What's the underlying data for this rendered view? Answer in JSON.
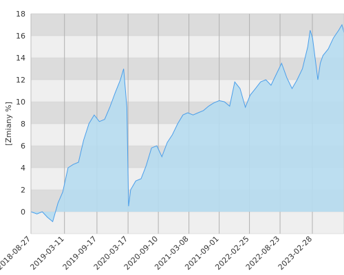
{
  "chart_data": {
    "type": "area",
    "ylabel": "[Zmiany %]",
    "x": [
      "2018-08-27",
      "2018-10-01",
      "2018-11-01",
      "2018-12-01",
      "2019-01-01",
      "2019-02-01",
      "2019-03-01",
      "2019-04-01",
      "2019-05-01",
      "2019-06-01",
      "2019-07-01",
      "2019-08-01",
      "2019-09-01",
      "2019-10-01",
      "2019-11-01",
      "2019-12-01",
      "2020-01-01",
      "2020-02-01",
      "2020-02-20",
      "2020-03-10",
      "2020-03-20",
      "2020-04-01",
      "2020-05-01",
      "2020-06-01",
      "2020-07-01",
      "2020-08-01",
      "2020-09-01",
      "2020-10-01",
      "2020-11-01",
      "2020-12-01",
      "2021-01-01",
      "2021-02-01",
      "2021-03-01",
      "2021-04-01",
      "2021-05-01",
      "2021-06-01",
      "2021-07-01",
      "2021-08-01",
      "2021-09-01",
      "2021-10-01",
      "2021-11-01",
      "2021-12-01",
      "2022-01-01",
      "2022-02-01",
      "2022-03-01",
      "2022-04-01",
      "2022-05-01",
      "2022-06-01",
      "2022-07-01",
      "2022-08-01",
      "2022-09-01",
      "2022-10-01",
      "2022-11-01",
      "2022-12-01",
      "2023-01-01",
      "2023-02-01",
      "2023-02-15",
      "2023-03-01",
      "2023-04-01",
      "2023-04-15",
      "2023-05-01",
      "2023-06-01",
      "2023-07-01",
      "2023-08-01",
      "2023-08-20",
      "2023-09-01"
    ],
    "values": [
      0,
      -0.2,
      0,
      -0.5,
      -0.9,
      0.8,
      1.8,
      4.0,
      4.3,
      4.5,
      6.5,
      8.0,
      8.8,
      8.2,
      8.4,
      9.5,
      10.8,
      12.0,
      13.0,
      9.5,
      0.5,
      2.0,
      2.8,
      3.0,
      4.2,
      5.8,
      6.0,
      5.0,
      6.3,
      7.0,
      8.0,
      8.8,
      9.0,
      8.8,
      9.0,
      9.2,
      9.6,
      9.9,
      10.1,
      10.0,
      9.6,
      11.8,
      11.2,
      9.5,
      10.6,
      11.2,
      11.8,
      12.0,
      11.5,
      12.5,
      13.5,
      12.2,
      11.2,
      12.0,
      13.0,
      15.0,
      16.5,
      15.8,
      12.0,
      13.5,
      14.2,
      14.8,
      15.8,
      16.5,
      17.0,
      16.3
    ],
    "color": "#4a9eea",
    "fill": "#b6dcef",
    "xlim": [
      "2018-08-27",
      "2023-09-01"
    ],
    "xticks": [
      "2018-08-27",
      "2019-03-11",
      "2019-09-17",
      "2020-03-17",
      "2020-09-10",
      "2021-03-08",
      "2021-09-01",
      "2022-02-25",
      "2022-08-23",
      "2023-02-28"
    ],
    "ylim": [
      -2,
      18
    ],
    "yticks": [
      0,
      2,
      4,
      6,
      8,
      10,
      12,
      14,
      16,
      18
    ],
    "grid": true
  }
}
